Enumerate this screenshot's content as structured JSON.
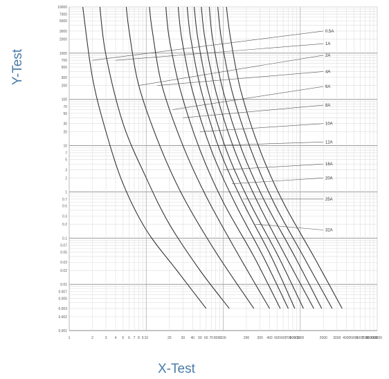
{
  "chart_data": {
    "type": "line",
    "title": "",
    "xlabel": "X-Test",
    "ylabel": "Y-Test",
    "x_scale": "log",
    "y_scale": "log",
    "xlim": [
      1,
      10000
    ],
    "ylim": [
      0.001,
      10000
    ],
    "grid": true,
    "legend": "none",
    "y_tick_labels": [
      "10000",
      "7000",
      "5000",
      "3000",
      "2000",
      "1000",
      "700",
      "500",
      "300",
      "200",
      "100",
      "70",
      "50",
      "30",
      "20",
      "10",
      "7",
      "5",
      "3",
      "2",
      "1",
      "0.7",
      "0.5",
      "0.3",
      "0.2",
      "0.1",
      "0.07",
      "0.05",
      "0.03",
      "0.02",
      "0.01",
      "0.007",
      "0.005",
      "0.003",
      "0.002",
      "0.001"
    ],
    "x_tick_labels": [
      "1",
      "2",
      "3",
      "4",
      "5",
      "6",
      "7",
      "8",
      "9",
      "10",
      "20",
      "30",
      "40",
      "50",
      "60",
      "70",
      "80",
      "90",
      "100",
      "200",
      "300",
      "400",
      "500",
      "600",
      "700",
      "800",
      "900",
      "1000",
      "2000",
      "3000",
      "4000",
      "5000",
      "6000",
      "7000",
      "8000",
      "9000",
      "10000"
    ],
    "series": [
      {
        "name": "0.5A",
        "points": [
          [
            1.5,
            10000
          ],
          [
            2,
            300
          ],
          [
            3,
            20
          ],
          [
            5,
            1.5
          ],
          [
            10,
            0.15
          ],
          [
            25,
            0.02
          ],
          [
            60,
            0.003
          ]
        ]
      },
      {
        "name": "1A",
        "points": [
          [
            2.5,
            10000
          ],
          [
            3,
            900
          ],
          [
            5,
            30
          ],
          [
            10,
            2
          ],
          [
            20,
            0.2
          ],
          [
            50,
            0.02
          ],
          [
            120,
            0.003
          ]
        ]
      },
      {
        "name": "2A",
        "points": [
          [
            5.5,
            10000
          ],
          [
            6,
            3000
          ],
          [
            8,
            200
          ],
          [
            15,
            10
          ],
          [
            30,
            0.8
          ],
          [
            80,
            0.05
          ],
          [
            250,
            0.003
          ]
        ]
      },
      {
        "name": "4A",
        "points": [
          [
            11,
            10000
          ],
          [
            12,
            3000
          ],
          [
            16,
            200
          ],
          [
            30,
            10
          ],
          [
            60,
            0.8
          ],
          [
            150,
            0.05
          ],
          [
            400,
            0.003
          ]
        ]
      },
      {
        "name": "6A",
        "points": [
          [
            18,
            10000
          ],
          [
            20,
            2000
          ],
          [
            28,
            150
          ],
          [
            50,
            8
          ],
          [
            100,
            0.6
          ],
          [
            250,
            0.04
          ],
          [
            550,
            0.003
          ]
        ]
      },
      {
        "name": "8A",
        "points": [
          [
            26,
            10000
          ],
          [
            29,
            2000
          ],
          [
            40,
            150
          ],
          [
            70,
            8
          ],
          [
            140,
            0.6
          ],
          [
            330,
            0.04
          ],
          [
            700,
            0.003
          ]
        ]
      },
      {
        "name": "10A",
        "points": [
          [
            34,
            10000
          ],
          [
            38,
            2000
          ],
          [
            52,
            150
          ],
          [
            90,
            8
          ],
          [
            180,
            0.6
          ],
          [
            420,
            0.04
          ],
          [
            850,
            0.003
          ]
        ]
      },
      {
        "name": "12A",
        "points": [
          [
            42,
            10000
          ],
          [
            47,
            2000
          ],
          [
            64,
            150
          ],
          [
            110,
            8
          ],
          [
            220,
            0.6
          ],
          [
            520,
            0.04
          ],
          [
            1100,
            0.003
          ]
        ]
      },
      {
        "name": "16A",
        "points": [
          [
            52,
            10000
          ],
          [
            58,
            2000
          ],
          [
            80,
            150
          ],
          [
            140,
            8
          ],
          [
            280,
            0.6
          ],
          [
            650,
            0.04
          ],
          [
            1500,
            0.003
          ]
        ]
      },
      {
        "name": "20A",
        "points": [
          [
            66,
            10000
          ],
          [
            73,
            2000
          ],
          [
            100,
            150
          ],
          [
            175,
            8
          ],
          [
            350,
            0.6
          ],
          [
            850,
            0.04
          ],
          [
            1900,
            0.003
          ]
        ]
      },
      {
        "name": "25A",
        "points": [
          [
            85,
            10000
          ],
          [
            95,
            2000
          ],
          [
            130,
            150
          ],
          [
            230,
            8
          ],
          [
            450,
            0.6
          ],
          [
            1100,
            0.04
          ],
          [
            2600,
            0.003
          ]
        ]
      },
      {
        "name": "32A",
        "points": [
          [
            110,
            10000
          ],
          [
            125,
            2000
          ],
          [
            170,
            150
          ],
          [
            300,
            8
          ],
          [
            600,
            0.6
          ],
          [
            1500,
            0.04
          ],
          [
            3500,
            0.003
          ]
        ]
      }
    ],
    "label_anchors": [
      {
        "name": "0.5A",
        "x": 2,
        "y": 700
      },
      {
        "name": "1A",
        "x": 4,
        "y": 700
      },
      {
        "name": "2A",
        "x": 8,
        "y": 200
      },
      {
        "name": "4A",
        "x": 14,
        "y": 200
      },
      {
        "name": "6A",
        "x": 22,
        "y": 60
      },
      {
        "name": "8A",
        "x": 30,
        "y": 40
      },
      {
        "name": "10A",
        "x": 50,
        "y": 20
      },
      {
        "name": "12A",
        "x": 70,
        "y": 10
      },
      {
        "name": "16A",
        "x": 100,
        "y": 3
      },
      {
        "name": "20A",
        "x": 130,
        "y": 1.5
      },
      {
        "name": "25A",
        "x": 180,
        "y": 0.7
      },
      {
        "name": "32A",
        "x": 260,
        "y": 0.2
      }
    ],
    "label_y_positions": [
      3000,
      1600,
      900,
      400,
      190,
      75,
      30,
      12,
      4,
      2,
      0.7,
      0.15
    ]
  }
}
